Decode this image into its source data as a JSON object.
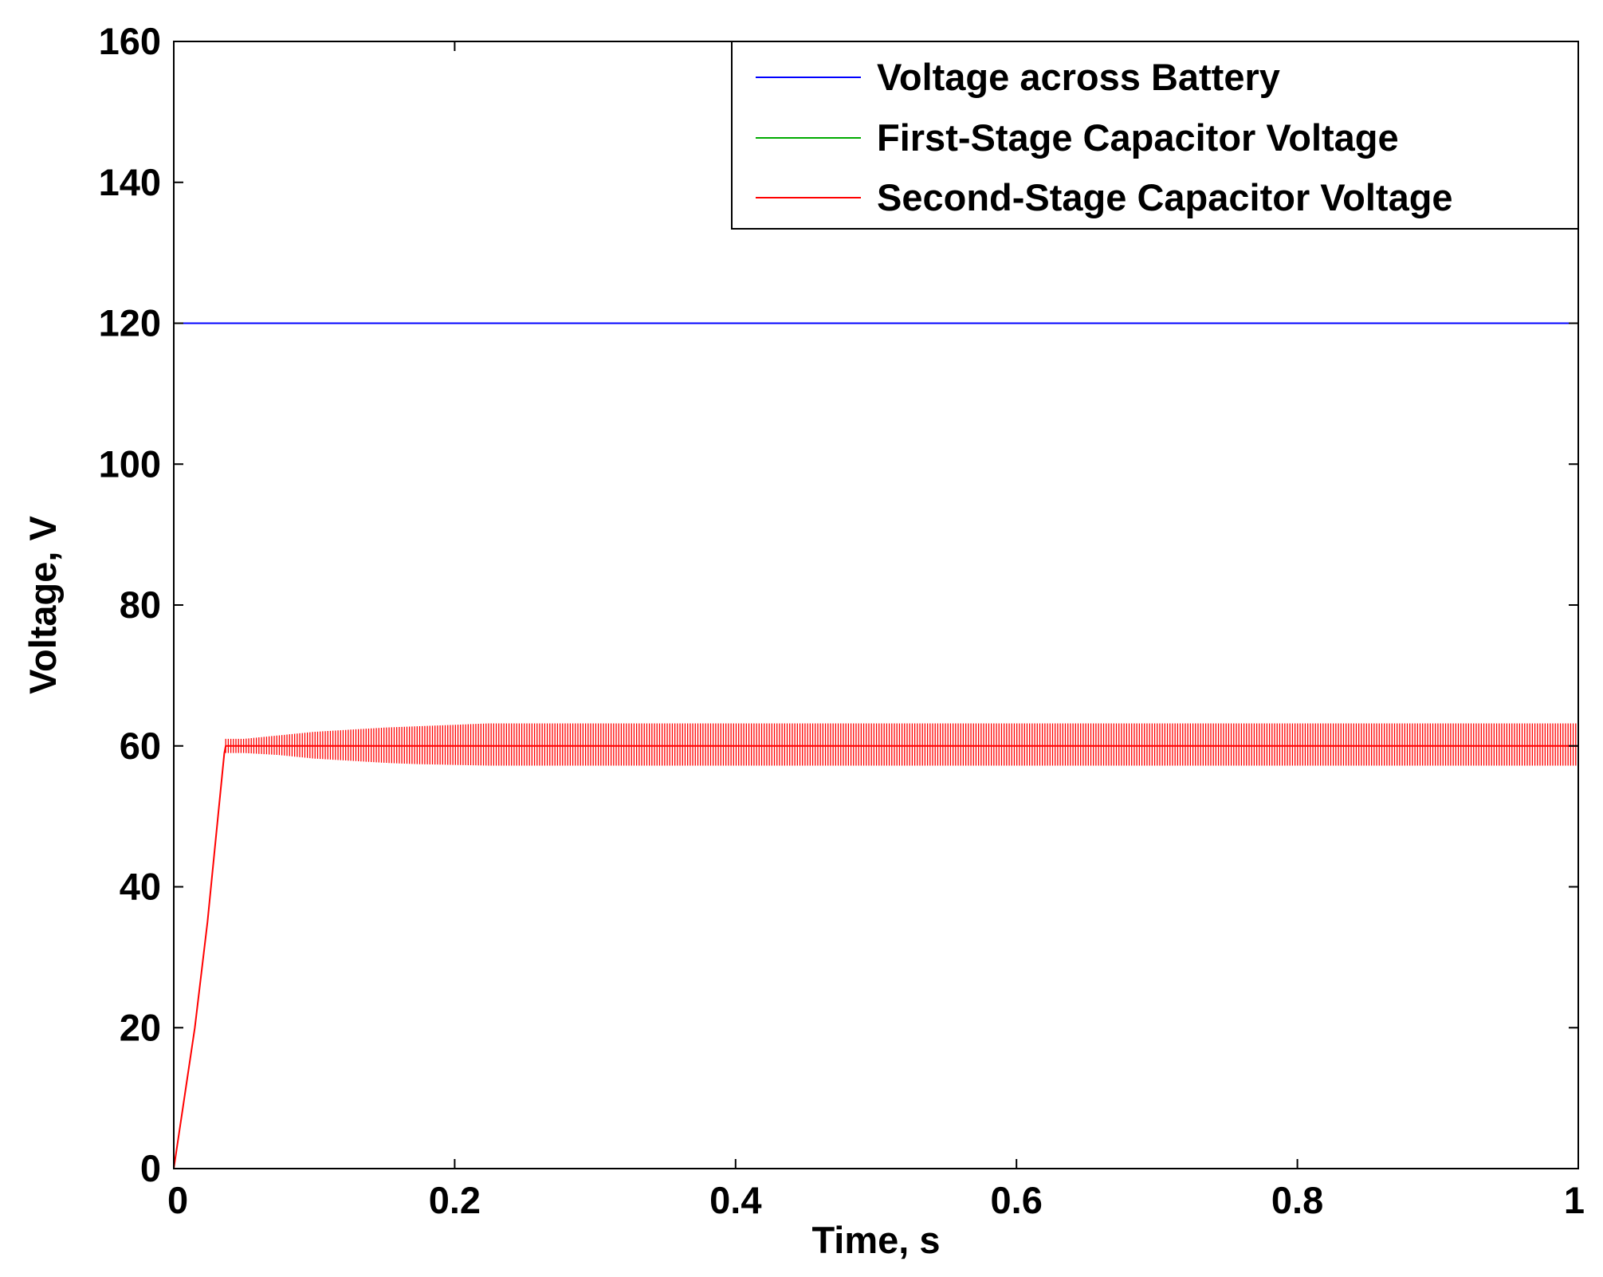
{
  "chart_data": {
    "type": "line",
    "title": "",
    "xlabel": "Time, s",
    "ylabel": "Voltage, V",
    "xlim": [
      0,
      1
    ],
    "ylim": [
      0,
      160
    ],
    "xticks": [
      0,
      0.2,
      0.4,
      0.6,
      0.8,
      1
    ],
    "xtick_labels": [
      "0",
      "0.2",
      "0.4",
      "0.6",
      "0.8",
      "1"
    ],
    "yticks": [
      0,
      20,
      40,
      60,
      80,
      100,
      120,
      140,
      160
    ],
    "ytick_labels": [
      "0",
      "20",
      "40",
      "60",
      "80",
      "100",
      "120",
      "140",
      "160"
    ],
    "grid": false,
    "legend_position": "top-right",
    "series": [
      {
        "name": "Voltage across Battery",
        "color": "#0000ff",
        "x": [
          0,
          1
        ],
        "y": [
          120,
          120
        ]
      },
      {
        "name": "First-Stage Capacitor Voltage",
        "color": "#00aa00",
        "x": [],
        "y": []
      },
      {
        "name": "Second-Stage Capacitor Voltage",
        "color": "#ff0000",
        "x": [
          0,
          0.003,
          0.006,
          0.009,
          0.012,
          0.015,
          0.018,
          0.021,
          0.024,
          0.027,
          0.03,
          0.033,
          0.035,
          0.036,
          0.037,
          0.05,
          0.075,
          0.1,
          0.125,
          0.15,
          0.175,
          0.2,
          0.225,
          0.3,
          0.4,
          0.5,
          0.6,
          0.7,
          0.8,
          0.9,
          1.0
        ],
        "y": [
          0,
          4,
          8,
          12,
          16,
          20,
          25,
          30,
          35,
          41,
          47,
          53,
          57,
          59,
          60,
          60,
          60,
          60,
          60,
          60,
          60,
          60,
          60,
          60,
          60,
          60,
          60,
          60,
          60,
          60,
          60
        ],
        "ripple_envelope": {
          "x": [
            0.037,
            0.05,
            0.075,
            0.1,
            0.125,
            0.15,
            0.175,
            0.2,
            0.225,
            1.0
          ],
          "upper": [
            61,
            61,
            61.5,
            62,
            62.3,
            62.6,
            62.8,
            63,
            63.2,
            63.2
          ],
          "lower": [
            59,
            59,
            58.7,
            58.2,
            57.9,
            57.6,
            57.4,
            57.3,
            57.2,
            57.2
          ]
        }
      }
    ]
  }
}
